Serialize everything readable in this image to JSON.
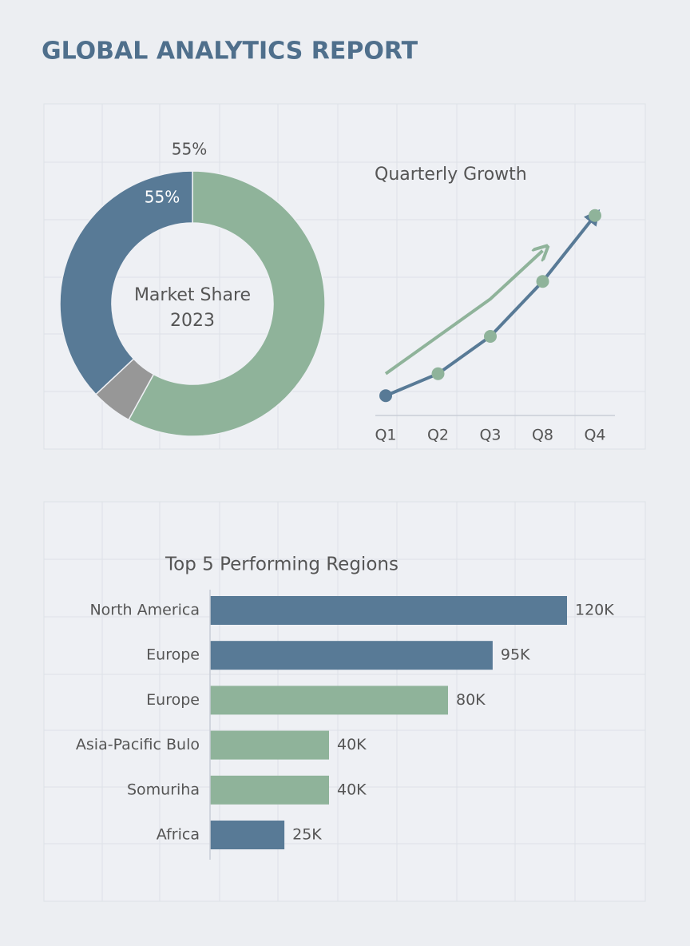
{
  "title": "GLOBAL ANALYTICS REPORT",
  "chart_data": [
    {
      "type": "donut",
      "title": "Market Share 2023",
      "annotations": [
        "55%",
        "55%"
      ],
      "values": [
        58,
        5,
        37
      ],
      "colors": [
        "#8fb39a",
        "#979797",
        "#587a96"
      ]
    },
    {
      "type": "line",
      "title": "Quarterly Growth",
      "categories": [
        "Q1",
        "Q2",
        "Q3",
        "Q8",
        "Q4"
      ],
      "ylim": [
        0,
        100
      ],
      "series": [
        {
          "color": "#587a96",
          "values": [
            9,
            19,
            36,
            61,
            91
          ],
          "marker_colors": [
            "#587a96",
            "#8fb39a",
            "#8fb39a",
            "#8fb39a",
            "#8fb39a"
          ]
        },
        {
          "color": "#8fb39a",
          "values": [
            19,
            36,
            53,
            75,
            null
          ]
        }
      ]
    },
    {
      "type": "bar",
      "orientation": "horizontal",
      "title": "Top 5 Performing Regions",
      "categories": [
        "North America",
        "Europe",
        "Europe",
        "Asia-Pacific Bulo",
        "Somuriha",
        "Africa"
      ],
      "values": [
        120000,
        95000,
        80000,
        40000,
        40000,
        25000
      ],
      "value_labels": [
        "120K",
        "95K",
        "80K",
        "40K",
        "40K",
        "25K"
      ],
      "colors": [
        "#587a96",
        "#587a96",
        "#8fb39a",
        "#8fb39a",
        "#8fb39a",
        "#587a96"
      ],
      "xlim": [
        0,
        120000
      ]
    }
  ]
}
